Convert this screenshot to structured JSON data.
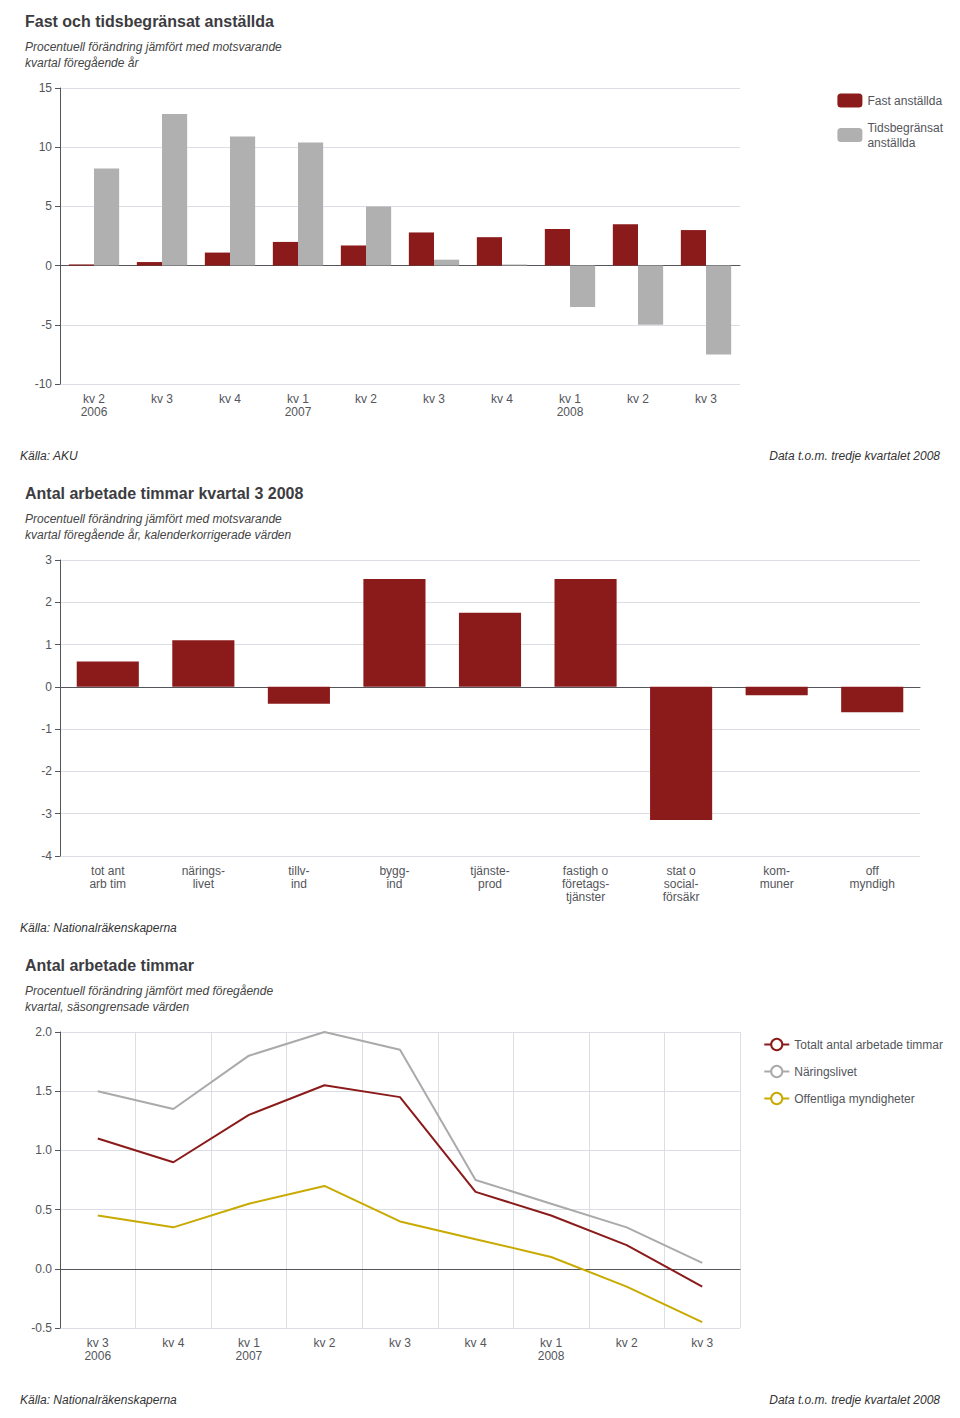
{
  "chart_data": [
    {
      "type": "bar",
      "title": "Fast och tidsbegränsat anställda",
      "subtitle": "Procentuell förändring jämfört med motsvarande\nkvartal föregående år",
      "categories": [
        "kv 2\n2006",
        "kv 3",
        "kv 4",
        "kv 1\n2007",
        "kv 2",
        "kv 3",
        "kv 4",
        "kv 1\n2008",
        "kv 2",
        "kv 3"
      ],
      "series": [
        {
          "name": "Fast anställda",
          "color": "#8b1a1a",
          "values": [
            0.1,
            0.3,
            1.1,
            2.0,
            1.7,
            2.8,
            2.4,
            3.1,
            3.5,
            3.0
          ]
        },
        {
          "name": "Tidsbegränsat\nanställda",
          "color": "#b0b0b0",
          "values": [
            8.2,
            12.8,
            10.9,
            10.4,
            5.0,
            0.5,
            0.1,
            -3.5,
            -5.0,
            -7.5
          ]
        }
      ],
      "ylim": [
        -10,
        15
      ],
      "yticks": [
        -10,
        -5,
        0,
        5,
        10,
        15
      ],
      "grid": true,
      "legend": "upper right",
      "annotations": [
        "Källa: AKU",
        "Data t.o.m. tredje kvartalet 2008"
      ]
    },
    {
      "type": "bar",
      "title": "Antal arbetade timmar kvartal 3 2008",
      "subtitle": "Procentuell förändring jämfört med motsvarande\nkvartal föregående år, kalenderkorrigerade värden",
      "categories": [
        "tot ant\narb tim",
        "närings-\nlivet",
        "tillv-\nind",
        "bygg-\nind",
        "tjänste-\nprod",
        "fastigh o\nföretags-\ntjänster",
        "stat o\nsocial-\nförsäkr",
        "kom-\nmuner",
        "off\nmyndigh"
      ],
      "values": [
        0.6,
        1.1,
        -0.4,
        2.55,
        1.75,
        2.55,
        -3.15,
        -0.2,
        -0.6
      ],
      "color": "#8b1a1a",
      "ylim": [
        -4,
        3
      ],
      "yticks": [
        -4,
        -3,
        -2,
        -1,
        0,
        1,
        2,
        3
      ],
      "grid": true,
      "annotations": [
        "Källa: Nationalräkenskaperna"
      ]
    },
    {
      "type": "line",
      "title": "Antal arbetade timmar",
      "subtitle": "Procentuell förändring jämfört med föregående\nkvartal, säsongrensade värden",
      "categories": [
        "kv 3\n2006",
        "kv 4",
        "kv 1\n2007",
        "kv 2",
        "kv 3",
        "kv 4",
        "kv 1\n2008",
        "kv 2",
        "kv 3"
      ],
      "series": [
        {
          "name": "Totalt antal arbetade timmar",
          "color": "#8b1a1a",
          "values": [
            1.1,
            0.9,
            1.3,
            1.55,
            1.45,
            0.65,
            0.45,
            0.2,
            -0.15
          ]
        },
        {
          "name": "Näringslivet",
          "color": "#aaaaaa",
          "values": [
            1.5,
            1.35,
            1.8,
            2.0,
            1.85,
            0.75,
            0.55,
            0.35,
            0.05
          ]
        },
        {
          "name": "Offentliga myndigheter",
          "color": "#c8aa00",
          "values": [
            0.45,
            0.35,
            0.55,
            0.7,
            0.4,
            0.25,
            0.1,
            -0.15,
            -0.45
          ]
        }
      ],
      "ylim": [
        -0.5,
        2.0
      ],
      "yticks": [
        -0.5,
        {
          "value": 0,
          "label": "0.0"
        },
        0.5,
        {
          "value": 1,
          "label": "1.0"
        },
        1.5,
        {
          "value": 2,
          "label": "2.0"
        }
      ],
      "grid": true,
      "legend": "upper right",
      "annotations": [
        "Källa: Nationalräkenskaperna",
        "Data t.o.m. tredje kvartalet 2008"
      ]
    }
  ]
}
